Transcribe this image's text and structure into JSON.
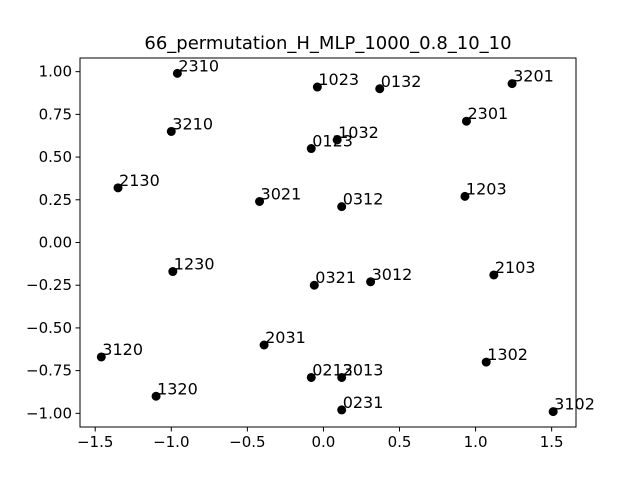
{
  "chart_data": {
    "type": "scatter",
    "title": "66_permutation_H_MLP_1000_0.8_10_10",
    "xlabel": "",
    "ylabel": "",
    "xlim": [
      -1.6,
      1.66
    ],
    "ylim": [
      -1.08,
      1.08
    ],
    "x_ticks": [
      -1.5,
      -1.0,
      -0.5,
      0.0,
      0.5,
      1.0,
      1.5
    ],
    "y_ticks": [
      -1.0,
      -0.75,
      -0.5,
      -0.25,
      0.0,
      0.25,
      0.5,
      0.75,
      1.0
    ],
    "x_tick_labels": [
      "−1.5",
      "−1.0",
      "−0.5",
      "0.0",
      "0.5",
      "1.0",
      "1.5"
    ],
    "y_tick_labels": [
      "−1.00",
      "−0.75",
      "−0.50",
      "−0.25",
      "0.00",
      "0.25",
      "0.50",
      "0.75",
      "1.00"
    ],
    "grid": false,
    "marker_color": "#000000",
    "points": [
      {
        "label": "2310",
        "x": -0.96,
        "y": 0.99
      },
      {
        "label": "1023",
        "x": -0.04,
        "y": 0.91
      },
      {
        "label": "0132",
        "x": 0.37,
        "y": 0.9
      },
      {
        "label": "3201",
        "x": 1.24,
        "y": 0.93
      },
      {
        "label": "3210",
        "x": -1.0,
        "y": 0.65
      },
      {
        "label": "2301",
        "x": 0.94,
        "y": 0.71
      },
      {
        "label": "0123",
        "x": -0.08,
        "y": 0.55
      },
      {
        "label": "1032",
        "x": 0.09,
        "y": 0.6
      },
      {
        "label": "2130",
        "x": -1.35,
        "y": 0.32
      },
      {
        "label": "3021",
        "x": -0.42,
        "y": 0.24
      },
      {
        "label": "0312",
        "x": 0.12,
        "y": 0.21
      },
      {
        "label": "1203",
        "x": 0.93,
        "y": 0.27
      },
      {
        "label": "1230",
        "x": -0.99,
        "y": -0.17
      },
      {
        "label": "0321",
        "x": -0.06,
        "y": -0.25
      },
      {
        "label": "3012",
        "x": 0.31,
        "y": -0.23
      },
      {
        "label": "2103",
        "x": 1.12,
        "y": -0.19
      },
      {
        "label": "3120",
        "x": -1.46,
        "y": -0.67
      },
      {
        "label": "2031",
        "x": -0.39,
        "y": -0.6
      },
      {
        "label": "0213",
        "x": -0.08,
        "y": -0.79
      },
      {
        "label": "2013",
        "x": 0.12,
        "y": -0.79
      },
      {
        "label": "1302",
        "x": 1.07,
        "y": -0.7
      },
      {
        "label": "1320",
        "x": -1.1,
        "y": -0.9
      },
      {
        "label": "0231",
        "x": 0.12,
        "y": -0.98
      },
      {
        "label": "3102",
        "x": 1.51,
        "y": -0.99
      }
    ]
  }
}
